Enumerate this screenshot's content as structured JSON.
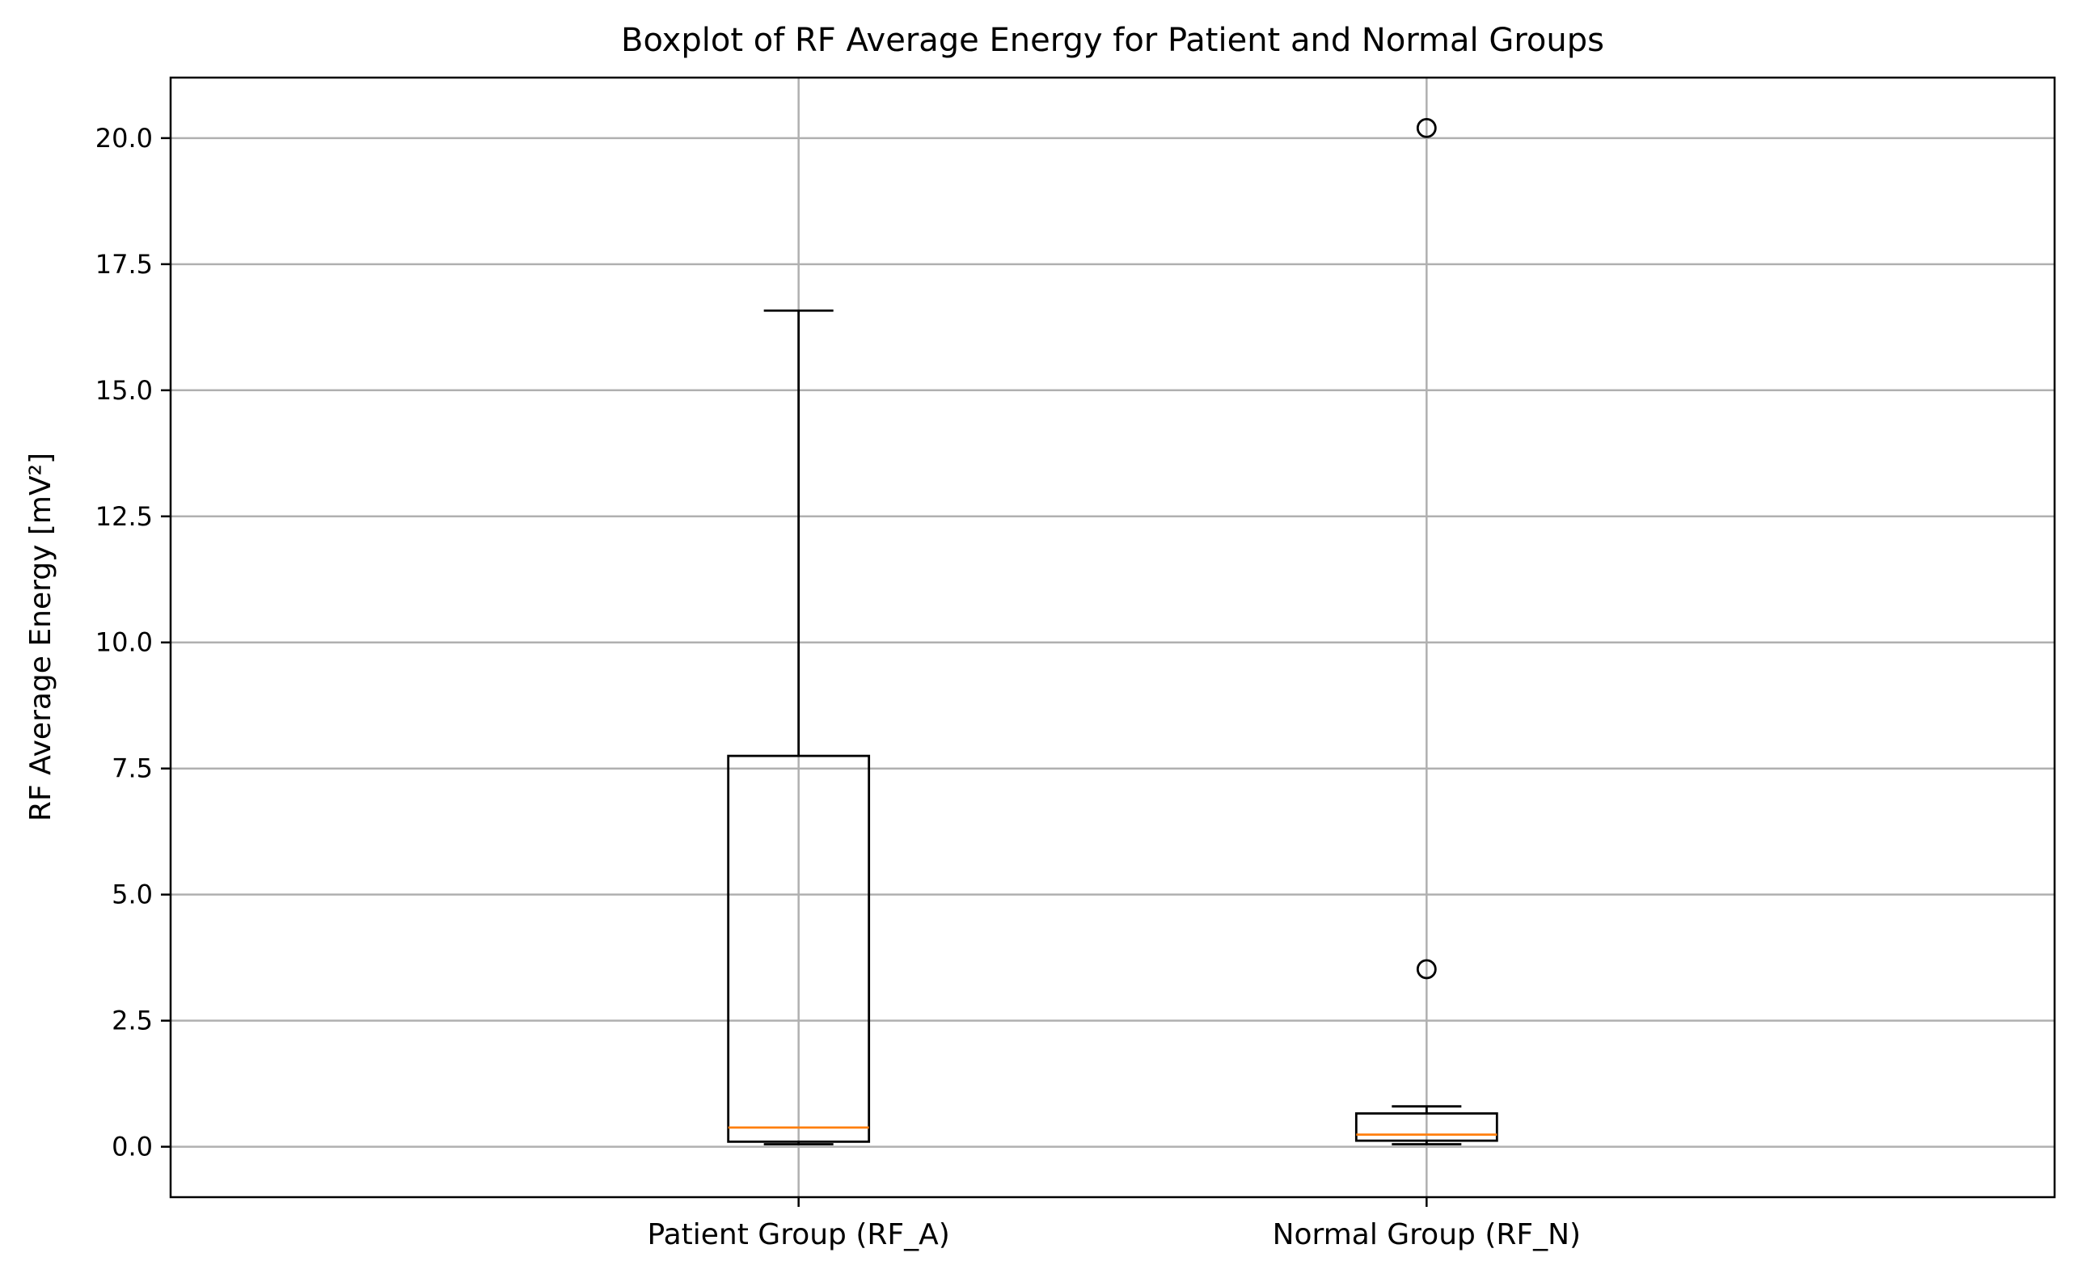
{
  "chart_data": {
    "type": "boxplot",
    "title": "Boxplot of RF Average Energy for Patient and Normal Groups",
    "xlabel": "",
    "ylabel": "RF Average Energy [mV²]",
    "ylim": [
      -1.0,
      21.2
    ],
    "yticks": [
      0.0,
      2.5,
      5.0,
      7.5,
      10.0,
      12.5,
      15.0,
      17.5,
      20.0
    ],
    "ytick_labels": [
      "0.0",
      "2.5",
      "5.0",
      "7.5",
      "10.0",
      "12.5",
      "15.0",
      "17.5",
      "20.0"
    ],
    "grid": true,
    "categories": [
      "Patient Group (RF_A)",
      "Normal Group (RF_N)"
    ],
    "boxes": [
      {
        "whislo": 0.05,
        "q1": 0.1,
        "med": 0.38,
        "q3": 7.75,
        "whishi": 16.58,
        "fliers": []
      },
      {
        "whislo": 0.05,
        "q1": 0.12,
        "med": 0.24,
        "q3": 0.66,
        "whishi": 0.8,
        "fliers": [
          3.52,
          20.2
        ]
      }
    ],
    "colors": {
      "box": "#000000",
      "median": "#ff7f0e",
      "grid": "#b0b0b0"
    }
  }
}
